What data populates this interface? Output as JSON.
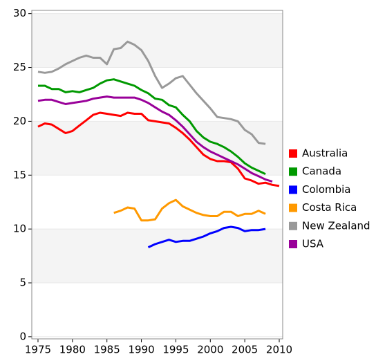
{
  "chart_data": {
    "type": "line",
    "x": [
      1975,
      1976,
      1977,
      1978,
      1979,
      1980,
      1981,
      1982,
      1983,
      1984,
      1985,
      1986,
      1987,
      1988,
      1989,
      1990,
      1991,
      1992,
      1993,
      1994,
      1995,
      1996,
      1997,
      1998,
      1999,
      2000,
      2001,
      2002,
      2003,
      2004,
      2005,
      2006,
      2007,
      2008,
      2009,
      2010
    ],
    "series": [
      {
        "name": "Australia",
        "color": "#ff0000",
        "values": [
          19.5,
          19.8,
          19.7,
          19.3,
          18.9,
          19.1,
          19.6,
          20.1,
          20.6,
          20.8,
          20.7,
          20.6,
          20.5,
          20.8,
          20.7,
          20.7,
          20.1,
          20.0,
          19.9,
          19.8,
          19.4,
          18.9,
          18.3,
          17.6,
          16.9,
          16.5,
          16.3,
          16.3,
          16.2,
          15.6,
          14.7,
          14.5,
          14.2,
          14.3,
          14.1,
          14.0
        ]
      },
      {
        "name": "Canada",
        "color": "#009900",
        "values": [
          23.3,
          23.3,
          23.0,
          23.0,
          22.7,
          22.8,
          22.7,
          22.9,
          23.1,
          23.5,
          23.8,
          23.9,
          23.7,
          23.5,
          23.3,
          22.9,
          22.6,
          22.1,
          22.0,
          21.5,
          21.3,
          20.6,
          20.0,
          19.1,
          18.5,
          18.1,
          17.9,
          17.6,
          17.2,
          16.7,
          16.1,
          15.7,
          15.4,
          15.1,
          null,
          null
        ]
      },
      {
        "name": "Colombia",
        "color": "#0000ff",
        "values": [
          null,
          null,
          null,
          null,
          null,
          null,
          null,
          null,
          null,
          null,
          null,
          null,
          null,
          null,
          null,
          null,
          8.3,
          8.6,
          8.8,
          9.0,
          8.8,
          8.9,
          8.9,
          9.1,
          9.3,
          9.6,
          9.8,
          10.1,
          10.2,
          10.1,
          9.8,
          9.9,
          9.9,
          10.0,
          null,
          null
        ]
      },
      {
        "name": "Costa Rica",
        "color": "#ff9900",
        "values": [
          null,
          null,
          null,
          null,
          null,
          null,
          null,
          null,
          null,
          null,
          null,
          11.5,
          11.7,
          12.0,
          11.9,
          10.8,
          10.8,
          10.9,
          11.9,
          12.4,
          12.7,
          12.1,
          11.8,
          11.5,
          11.3,
          11.2,
          11.2,
          11.6,
          11.6,
          11.2,
          11.4,
          11.4,
          11.7,
          11.4,
          null,
          null
        ]
      },
      {
        "name": "New Zealand",
        "color": "#999999",
        "values": [
          24.6,
          24.5,
          24.6,
          24.9,
          25.3,
          25.6,
          25.9,
          26.1,
          25.9,
          25.9,
          25.3,
          26.7,
          26.8,
          27.4,
          27.1,
          26.6,
          25.6,
          24.2,
          23.1,
          23.5,
          24.0,
          24.2,
          23.4,
          22.6,
          21.9,
          21.2,
          20.4,
          20.3,
          20.2,
          20.0,
          19.2,
          18.8,
          18.0,
          17.9,
          null,
          null
        ]
      },
      {
        "name": "USA",
        "color": "#990099",
        "values": [
          21.9,
          22.0,
          22.0,
          21.8,
          21.6,
          21.7,
          21.8,
          21.9,
          22.1,
          22.2,
          22.3,
          22.2,
          22.2,
          22.2,
          22.2,
          22.0,
          21.7,
          21.3,
          20.9,
          20.6,
          20.1,
          19.5,
          18.8,
          18.1,
          17.6,
          17.2,
          16.9,
          16.6,
          16.3,
          16.0,
          15.6,
          15.2,
          14.9,
          14.6,
          14.4,
          null
        ]
      }
    ],
    "xlim": [
      1974.1,
      2010.5
    ],
    "ylim": [
      -0.2,
      30.3
    ],
    "xticks": [
      1975,
      1980,
      1985,
      1990,
      1995,
      2000,
      2005,
      2010
    ],
    "yticks": [
      0,
      5,
      10,
      15,
      20,
      25,
      30
    ],
    "grid": true,
    "legend": "right"
  }
}
